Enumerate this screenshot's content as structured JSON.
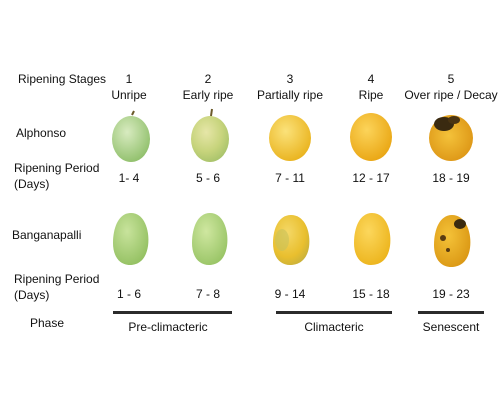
{
  "headers": {
    "stages_label": "Ripening Stages",
    "alphonso_label": "Alphonso",
    "banganapalli_label": "Banganapalli",
    "period_label_1": "Ripening Period (Days)",
    "period_label_2": "Ripening Period (Days)",
    "phase_label": "Phase"
  },
  "stages": [
    {
      "number": "1",
      "name": "Unripe"
    },
    {
      "number": "2",
      "name": "Early ripe"
    },
    {
      "number": "3",
      "name": "Partially ripe"
    },
    {
      "number": "4",
      "name": "Ripe"
    },
    {
      "number": "5",
      "name": "Over ripe / Decay"
    }
  ],
  "alphonso_periods": [
    "1- 4",
    "5 - 6",
    "7 - 11",
    "12 - 17",
    "18 - 19"
  ],
  "banganapalli_periods": [
    "1 - 6",
    "7 - 8",
    "9 - 14",
    "15 - 18",
    "19 - 23"
  ],
  "phases": [
    "Pre-climacteric",
    "Climacteric",
    "Senescent"
  ],
  "colors": {
    "unripe": "#a9cf86",
    "early_ripe": "#bfd27a",
    "partially_ripe": "#f1c22c",
    "ripe": "#f6bb1a",
    "decay": "#e8a417",
    "spot": "#3a2a10",
    "phase_line": "#2b2b2b"
  }
}
